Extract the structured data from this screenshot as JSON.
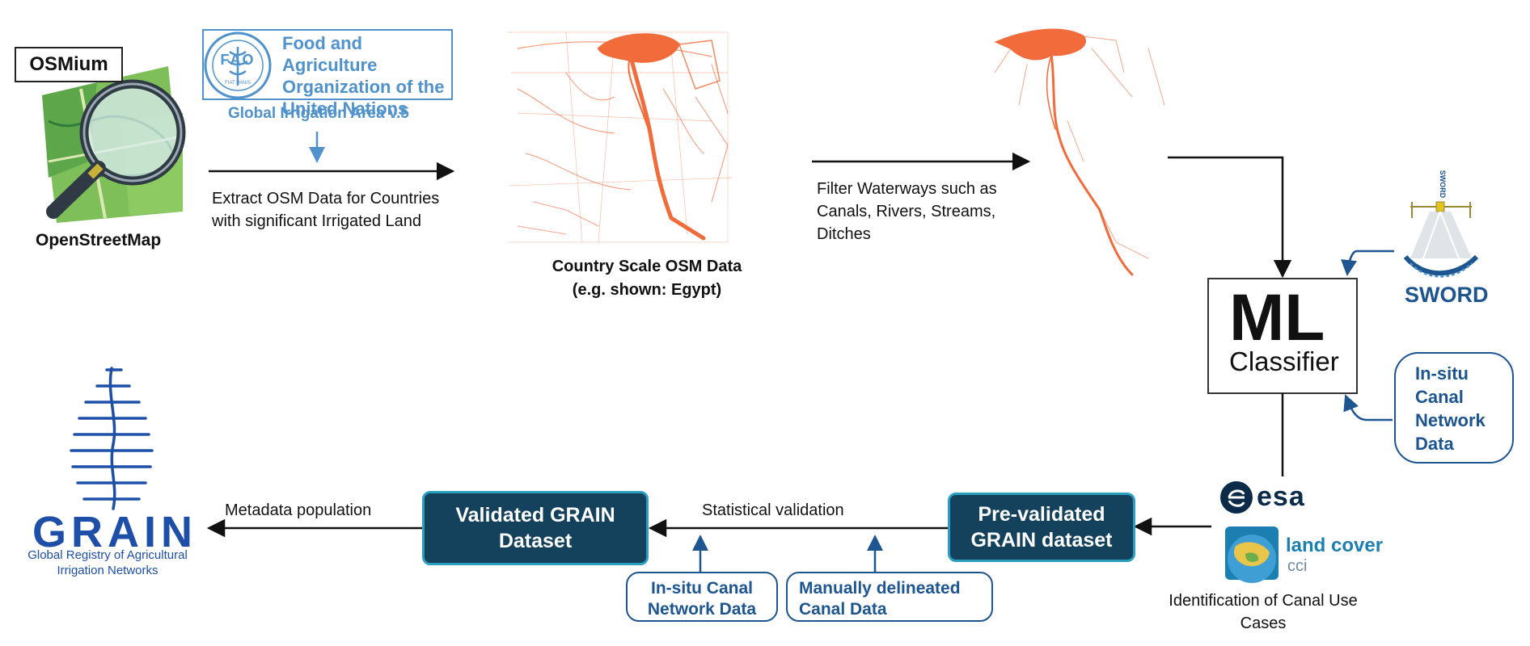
{
  "osm": {
    "osmium_label": "OSMium",
    "openstreetmap_label": "OpenStreetMap"
  },
  "fao": {
    "logo_text": "FAO",
    "logo_motto": "FIAT PANIS",
    "name": "Food and Agriculture Organization of the United Nations",
    "dataset": "Global Irrigation Area v.5"
  },
  "steps": {
    "extract": "Extract OSM Data for Countries with significant Irrigated Land",
    "country_caption_1": "Country Scale OSM Data",
    "country_caption_2": "(e.g. shown: Egypt)",
    "filter": "Filter Waterways such as Canals, Rivers, Streams, Ditches"
  },
  "ml": {
    "title": "ML",
    "subtitle": "Classifier"
  },
  "sword": {
    "label": "SWORD",
    "small_label": "SWORD"
  },
  "insitu_right": {
    "text": "In-situ Canal Network Data"
  },
  "esa": {
    "label": "esa",
    "landcover": "land cover",
    "cci": "cci",
    "caption": "Identification of Canal Use Cases"
  },
  "prevalidated": {
    "text": "Pre-validated GRAIN dataset"
  },
  "validated": {
    "text": "Validated GRAIN Dataset"
  },
  "statistical_validation": "Statistical validation",
  "insitu_bottom": {
    "text": "In-situ Canal Network Data"
  },
  "manual": {
    "text": "Manually delineated Canal Data"
  },
  "metadata_population": "Metadata population",
  "grain": {
    "wordmark": "GRAIN",
    "full_name": "Global Registry of Agricultural Irrigation Networks"
  },
  "colors": {
    "navy": "#14425c",
    "teal_border": "#2a9fc0",
    "blue": "#1d5591",
    "fao_blue": "#4f92cc",
    "map_orange": "#f26b3a"
  }
}
